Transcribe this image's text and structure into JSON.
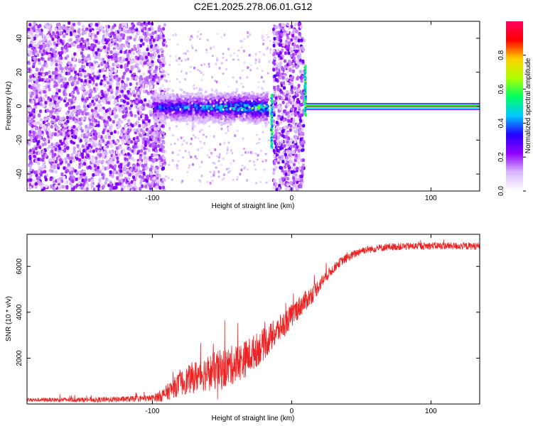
{
  "title": "C2E1.2025.278.06.01.G12",
  "chart_data": [
    {
      "type": "heatmap",
      "xlabel": "Height of straight line (km)",
      "ylabel": "Frequency (Hz)",
      "xlim": [
        -190,
        135
      ],
      "ylim": [
        -50,
        50
      ],
      "xticks": [
        -100,
        0,
        100
      ],
      "yticks": [
        -40,
        -20,
        0,
        20,
        40
      ],
      "colorbar": {
        "label": "Normalized spectral amplitude",
        "range": [
          0,
          1
        ],
        "ticks": [
          0,
          0.2,
          0.4,
          0.6,
          0.8
        ],
        "tick_labels": [
          "0.0",
          "0.2",
          "0.4",
          "0.6",
          "0.8"
        ],
        "colors": [
          "#ffffff",
          "#d9b8ff",
          "#9000ff",
          "#2200ff",
          "#00c8ff",
          "#00ff60",
          "#b0ff00",
          "#ffd000",
          "#ff0000",
          "#ff0060"
        ]
      },
      "regions": [
        {
          "name": "noise",
          "x": [
            -190,
            -92
          ],
          "density": 0.75,
          "freq_spread": 50,
          "amplitude": 0.25
        },
        {
          "name": "signal-onset",
          "x": [
            -100,
            -18
          ],
          "center_freq": 0,
          "freq_spread": 7,
          "amplitude": 0.6
        },
        {
          "name": "burst",
          "x": [
            -14,
            8
          ],
          "density": 0.85,
          "freq_spread": 50,
          "amplitude": 0.28
        },
        {
          "name": "clean-tone",
          "x": [
            10,
            135
          ],
          "center_freq": 0,
          "freq_spread": 1.5,
          "amplitude": 0.95
        }
      ],
      "spikes": [
        {
          "x": -15,
          "freq_min": -24,
          "freq_max": 8
        },
        {
          "x": 9,
          "freq_min": -5,
          "freq_max": 25
        }
      ]
    },
    {
      "type": "line",
      "xlabel": "Height of straight line (km)",
      "ylabel": "SNR (10 * v/v)",
      "xlim": [
        -190,
        135
      ],
      "ylim": [
        0,
        7400
      ],
      "xticks": [
        -100,
        0,
        100
      ],
      "yticks": [
        2000,
        4000,
        6000
      ],
      "color": "#ee2222",
      "profile": [
        [
          -190,
          180
        ],
        [
          -130,
          190
        ],
        [
          -100,
          250
        ],
        [
          -92,
          400
        ],
        [
          -80,
          900
        ],
        [
          -65,
          1300
        ],
        [
          -50,
          1500
        ],
        [
          -35,
          1900
        ],
        [
          -20,
          2600
        ],
        [
          -5,
          3500
        ],
        [
          5,
          4200
        ],
        [
          15,
          4800
        ],
        [
          25,
          5600
        ],
        [
          35,
          6200
        ],
        [
          50,
          6700
        ],
        [
          70,
          6850
        ],
        [
          100,
          6900
        ],
        [
          135,
          6880
        ]
      ],
      "noise_profile": [
        [
          -190,
          80
        ],
        [
          -100,
          140
        ],
        [
          -90,
          350
        ],
        [
          -70,
          700
        ],
        [
          -50,
          900
        ],
        [
          -30,
          800
        ],
        [
          -10,
          600
        ],
        [
          10,
          450
        ],
        [
          30,
          200
        ],
        [
          60,
          160
        ],
        [
          135,
          160
        ]
      ]
    }
  ]
}
